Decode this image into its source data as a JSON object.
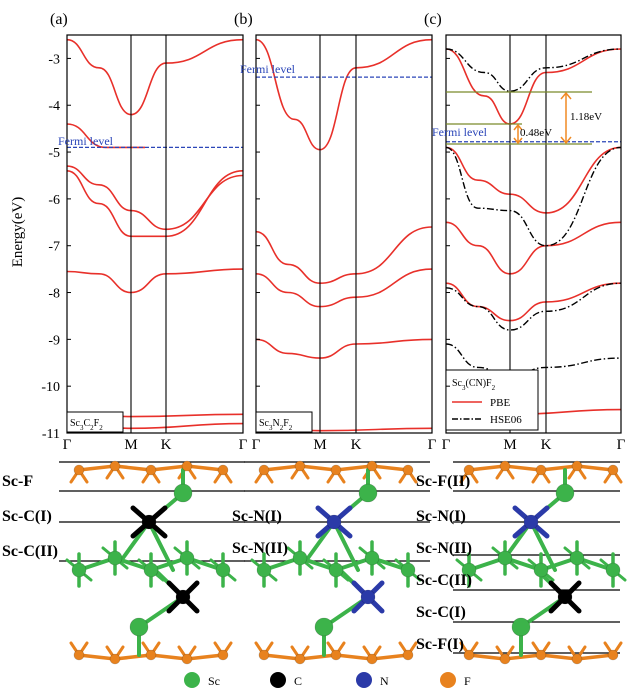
{
  "figure": {
    "ylabel": "Energy(eV)",
    "ylim": [
      -11,
      -2.5
    ],
    "yticks": [
      "-3",
      "-4",
      "-5",
      "-6",
      "-7",
      "-8",
      "-9",
      "-10",
      "-11"
    ],
    "xticks": [
      "Γ",
      "M",
      "K",
      "Γ"
    ],
    "fermi_label": "Fermi level",
    "colors": {
      "pbe": "#e8302a",
      "hse": "#000000",
      "fermi": "#2b46b8",
      "gap_arrow": "#f08a24",
      "gap_line": "#7a8a2a"
    }
  },
  "panels": [
    {
      "letter": "(a)",
      "material_html": "Sc<tspan baseline-shift='sub' font-size='7'>3</tspan>C<tspan baseline-shift='sub' font-size='7'>2</tspan>F<tspan baseline-shift='sub' font-size='7'>2</tspan>"
    },
    {
      "letter": "(b)",
      "material_html": "Sc<tspan baseline-shift='sub' font-size='7'>3</tspan>N<tspan baseline-shift='sub' font-size='7'>2</tspan>F<tspan baseline-shift='sub' font-size='7'>2</tspan>"
    },
    {
      "letter": "(c)",
      "material_html": "Sc<tspan baseline-shift='sub' font-size='7'>3</tspan>(CN)F<tspan baseline-shift='sub' font-size='7'>2</tspan>"
    }
  ],
  "legend_c": {
    "pbe": "PBE",
    "hse": "HSE06"
  },
  "gaps": {
    "small": "0.48eV",
    "large": "1.18eV"
  },
  "chart_data": [
    {
      "type": "line",
      "name": "Sc3C2F2 band structure",
      "xlabel": "",
      "ylabel": "Energy(eV)",
      "ylim": [
        -11,
        -2.5
      ],
      "kpoints": [
        "Γ",
        "M",
        "K",
        "Γ"
      ],
      "fermi_level": -4.9,
      "series": [
        {
          "style": "pbe",
          "values": [
            [
              0,
              -2.6
            ],
            [
              0.25,
              -3.2
            ],
            [
              0.5,
              -4.2
            ],
            [
              0.75,
              -3.1
            ],
            [
              1,
              -2.6
            ]
          ]
        },
        {
          "style": "pbe",
          "values": [
            [
              0,
              -4.4
            ],
            [
              0.3,
              -4.9
            ],
            [
              0.5,
              -4.9
            ],
            [
              0.6,
              -4.9
            ]
          ]
        },
        {
          "style": "pbe",
          "values": [
            [
              0,
              -5.3
            ],
            [
              0.25,
              -5.7
            ],
            [
              0.5,
              -6.25
            ],
            [
              0.75,
              -6.65
            ],
            [
              1,
              -5.5
            ]
          ]
        },
        {
          "style": "pbe",
          "values": [
            [
              0,
              -5.4
            ],
            [
              0.25,
              -6.1
            ],
            [
              0.5,
              -6.8
            ],
            [
              0.75,
              -6.8
            ],
            [
              1,
              -5.4
            ]
          ]
        },
        {
          "style": "pbe",
          "values": [
            [
              0,
              -7.55
            ],
            [
              0.25,
              -7.6
            ],
            [
              0.5,
              -8.0
            ],
            [
              0.75,
              -7.6
            ],
            [
              1,
              -7.5
            ]
          ]
        },
        {
          "style": "pbe",
          "values": [
            [
              0,
              -10.6
            ],
            [
              0.5,
              -10.65
            ],
            [
              1,
              -10.6
            ]
          ]
        },
        {
          "style": "pbe",
          "values": [
            [
              0,
              -10.8
            ],
            [
              0.5,
              -10.9
            ],
            [
              1,
              -10.8
            ]
          ]
        }
      ]
    },
    {
      "type": "line",
      "name": "Sc3N2F2 band structure",
      "xlabel": "",
      "ylabel": "",
      "ylim": [
        -11,
        -2.5
      ],
      "kpoints": [
        "Γ",
        "M",
        "K",
        "Γ"
      ],
      "fermi_level": -3.4,
      "series": [
        {
          "style": "pbe",
          "values": [
            [
              0,
              -2.6
            ],
            [
              0.3,
              -4.3
            ],
            [
              0.5,
              -4.95
            ],
            [
              0.75,
              -3.2
            ],
            [
              1,
              -2.6
            ]
          ]
        },
        {
          "style": "pbe",
          "values": [
            [
              0,
              -6.7
            ],
            [
              0.25,
              -7.4
            ],
            [
              0.5,
              -7.8
            ],
            [
              0.75,
              -7.6
            ],
            [
              1,
              -6.6
            ]
          ]
        },
        {
          "style": "pbe",
          "values": [
            [
              0,
              -7.6
            ],
            [
              0.25,
              -8.0
            ],
            [
              0.5,
              -8.3
            ],
            [
              0.75,
              -8.1
            ],
            [
              1,
              -7.5
            ]
          ]
        },
        {
          "style": "pbe",
          "values": [
            [
              0,
              -9.0
            ],
            [
              0.25,
              -9.3
            ],
            [
              0.5,
              -9.4
            ],
            [
              0.75,
              -9.1
            ],
            [
              1,
              -9.0
            ]
          ]
        },
        {
          "style": "pbe",
          "values": [
            [
              0,
              -10.9
            ],
            [
              0.5,
              -10.95
            ],
            [
              1,
              -10.9
            ]
          ]
        }
      ]
    },
    {
      "type": "line",
      "name": "Sc3(CN)F2 band structure",
      "xlabel": "",
      "ylabel": "",
      "ylim": [
        -11,
        -2.5
      ],
      "kpoints": [
        "Γ",
        "M",
        "K",
        "Γ"
      ],
      "fermi_level": -4.78,
      "series": [
        {
          "name": "PBE",
          "style": "pbe",
          "values": [
            [
              0,
              -2.8
            ],
            [
              0.3,
              -3.8
            ],
            [
              0.5,
              -4.4
            ],
            [
              0.75,
              -3.3
            ],
            [
              1,
              -2.8
            ]
          ]
        },
        {
          "style": "pbe",
          "values": [
            [
              0,
              -4.9
            ],
            [
              0.25,
              -5.6
            ],
            [
              0.5,
              -5.9
            ],
            [
              0.75,
              -6.3
            ],
            [
              1,
              -4.9
            ]
          ]
        },
        {
          "style": "pbe",
          "values": [
            [
              0,
              -6.5
            ],
            [
              0.25,
              -7.0
            ],
            [
              0.5,
              -7.6
            ],
            [
              0.75,
              -7.0
            ],
            [
              1,
              -6.5
            ]
          ]
        },
        {
          "style": "pbe",
          "values": [
            [
              0,
              -7.8
            ],
            [
              0.25,
              -8.3
            ],
            [
              0.5,
              -8.6
            ],
            [
              0.75,
              -8.2
            ],
            [
              1,
              -7.8
            ]
          ]
        },
        {
          "style": "pbe",
          "values": [
            [
              0,
              -10.4
            ],
            [
              0.5,
              -10.6
            ],
            [
              1,
              -10.5
            ]
          ]
        },
        {
          "name": "HSE06",
          "style": "hse",
          "values": [
            [
              0,
              -2.8
            ],
            [
              0.3,
              -3.3
            ],
            [
              0.5,
              -3.7
            ],
            [
              0.75,
              -3.2
            ],
            [
              1,
              -2.8
            ]
          ]
        },
        {
          "style": "hse",
          "values": [
            [
              0,
              -4.9
            ],
            [
              0.25,
              -6.2
            ],
            [
              0.5,
              -6.25
            ],
            [
              0.75,
              -7.0
            ],
            [
              1,
              -4.9
            ]
          ]
        },
        {
          "style": "hse",
          "values": [
            [
              0,
              -7.9
            ],
            [
              0.25,
              -8.3
            ],
            [
              0.5,
              -8.8
            ],
            [
              0.75,
              -8.4
            ],
            [
              1,
              -7.8
            ]
          ]
        },
        {
          "style": "hse",
          "values": [
            [
              0,
              -9.1
            ],
            [
              0.25,
              -9.6
            ],
            [
              0.5,
              -9.8
            ],
            [
              0.75,
              -9.6
            ],
            [
              1,
              -9.4
            ]
          ]
        }
      ]
    }
  ],
  "structure": {
    "columns": [
      {
        "labels": [
          "Sc-F",
          "Sc-C(I)",
          "Sc-C(II)"
        ]
      },
      {
        "labels": [
          "Sc-N(I)",
          "Sc-N(II)"
        ]
      },
      {
        "labels": [
          "Sc-F(II)",
          "Sc-N(I)",
          "Sc-N(II)",
          "Sc-C(II)",
          "Sc-C(I)",
          "Sc-F(I)"
        ]
      }
    ],
    "legend": [
      {
        "label": "Sc",
        "color": "#3cb34a"
      },
      {
        "label": "C",
        "color": "#000000"
      },
      {
        "label": "N",
        "color": "#2b3aa8"
      },
      {
        "label": "F",
        "color": "#e8821e"
      }
    ]
  }
}
